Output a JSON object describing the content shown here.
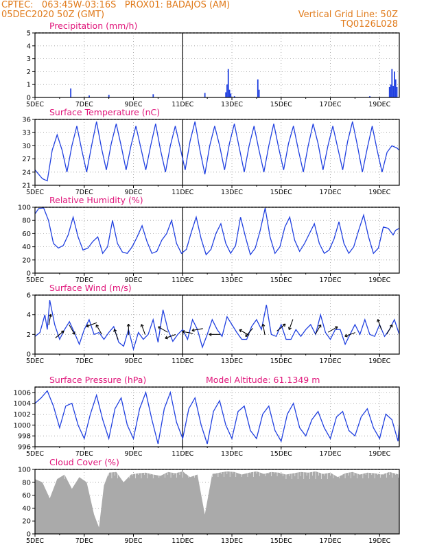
{
  "header": {
    "line1_left": "CPTEC:   063:45W-03:16S   PROX01: BADAJOS (AM)",
    "line2_left": "05DEC2020 50Z (GMT)",
    "line2_right": "Vertical Grid Line: 50Z",
    "line3_right": "TQ0126L028"
  },
  "colors": {
    "line": "#2040e0",
    "title": "#e0157a",
    "header": "#e07a1a",
    "cloud": "#aaaaaa",
    "wind_arrow": "#000000"
  },
  "x_ticks": [
    "5DEC",
    "7DEC",
    "9DEC",
    "11DEC",
    "13DEC",
    "15DEC",
    "17DEC",
    "19DEC"
  ],
  "x_tick_days": [
    0,
    2,
    4,
    6,
    8,
    10,
    12,
    14
  ],
  "vertical_grid_day": 6,
  "chart_data": [
    {
      "type": "bar",
      "title": "Precipitation (mm/h)",
      "ylim": [
        0,
        5
      ],
      "yticks": [
        "0",
        "1",
        "2",
        "3",
        "4",
        "5"
      ],
      "xlim": [
        0,
        14.8
      ],
      "x": [
        1.45,
        2.2,
        3.0,
        4.8,
        6.9,
        7.75,
        7.8,
        7.85,
        7.9,
        7.95,
        8.1,
        9.05,
        9.1,
        13.6,
        14.4,
        14.45,
        14.5,
        14.55,
        14.6,
        14.65,
        14.7
      ],
      "values": [
        0.7,
        0.15,
        0.2,
        0.25,
        0.35,
        0.4,
        1.0,
        2.2,
        0.6,
        0.3,
        0.1,
        1.4,
        0.6,
        0.1,
        0.8,
        1.0,
        2.2,
        0.9,
        2.0,
        1.4,
        0.8
      ],
      "grid": true
    },
    {
      "type": "line",
      "title": "Surface Temperature (nC)",
      "ylim": [
        21,
        36
      ],
      "yticks": [
        "21",
        "24",
        "27",
        "30",
        "33",
        "36"
      ],
      "xlim": [
        0,
        14.8
      ],
      "x": [
        0,
        0.3,
        0.5,
        0.7,
        0.9,
        1.1,
        1.3,
        1.5,
        1.7,
        1.9,
        2.1,
        2.3,
        2.5,
        2.7,
        2.9,
        3.1,
        3.3,
        3.5,
        3.7,
        3.9,
        4.1,
        4.3,
        4.5,
        4.7,
        4.9,
        5.1,
        5.3,
        5.5,
        5.7,
        5.9,
        6.1,
        6.3,
        6.5,
        6.7,
        6.9,
        7.1,
        7.3,
        7.5,
        7.7,
        7.9,
        8.1,
        8.3,
        8.5,
        8.7,
        8.9,
        9.1,
        9.3,
        9.5,
        9.7,
        9.9,
        10.1,
        10.3,
        10.5,
        10.7,
        10.9,
        11.1,
        11.3,
        11.5,
        11.7,
        11.9,
        12.1,
        12.3,
        12.5,
        12.7,
        12.9,
        13.1,
        13.3,
        13.5,
        13.7,
        13.9,
        14.1,
        14.3,
        14.5,
        14.7,
        14.8
      ],
      "values": [
        24.5,
        22.5,
        22,
        29,
        32.5,
        29,
        24,
        30,
        34.5,
        29,
        24,
        30,
        35.5,
        29.5,
        24.5,
        30.5,
        35,
        30,
        24.5,
        30,
        34.5,
        29.5,
        24.5,
        30,
        35,
        29,
        24,
        30,
        34.5,
        29.5,
        24.5,
        31,
        35.5,
        29,
        23.5,
        30,
        34.5,
        30,
        24.5,
        30.5,
        35,
        29.5,
        24,
        30,
        34.5,
        29,
        24,
        30,
        35,
        29.5,
        24.5,
        30.5,
        34.5,
        29,
        24,
        30,
        35,
        30.5,
        24.5,
        30,
        34.5,
        29.5,
        24.5,
        31,
        35.5,
        30,
        24,
        29.5,
        34.5,
        29,
        24,
        28.5,
        30,
        29.5,
        29
      ],
      "grid": true
    },
    {
      "type": "line",
      "title": "Relative Humidity (%)",
      "ylim": [
        0,
        100
      ],
      "yticks": [
        "0",
        "20",
        "40",
        "60",
        "80",
        "100"
      ],
      "xlim": [
        0,
        14.8
      ],
      "x": [
        0,
        0.15,
        0.35,
        0.55,
        0.75,
        0.95,
        1.15,
        1.35,
        1.55,
        1.75,
        1.95,
        2.15,
        2.35,
        2.55,
        2.75,
        2.95,
        3.15,
        3.35,
        3.55,
        3.75,
        3.95,
        4.15,
        4.35,
        4.55,
        4.75,
        4.95,
        5.15,
        5.35,
        5.55,
        5.75,
        5.95,
        6.15,
        6.35,
        6.55,
        6.75,
        6.95,
        7.15,
        7.35,
        7.55,
        7.75,
        7.95,
        8.15,
        8.35,
        8.55,
        8.75,
        8.95,
        9.15,
        9.35,
        9.55,
        9.75,
        9.95,
        10.15,
        10.35,
        10.55,
        10.75,
        10.95,
        11.15,
        11.35,
        11.55,
        11.75,
        11.95,
        12.15,
        12.35,
        12.55,
        12.75,
        12.95,
        13.15,
        13.35,
        13.55,
        13.75,
        13.95,
        14.15,
        14.35,
        14.55,
        14.65,
        14.8
      ],
      "values": [
        90,
        98,
        99,
        80,
        45,
        38,
        42,
        58,
        85,
        55,
        35,
        38,
        48,
        55,
        30,
        40,
        80,
        45,
        32,
        30,
        40,
        55,
        72,
        48,
        30,
        33,
        50,
        60,
        80,
        45,
        30,
        36,
        62,
        85,
        52,
        28,
        36,
        60,
        75,
        45,
        30,
        42,
        85,
        55,
        28,
        38,
        65,
        99,
        55,
        30,
        40,
        70,
        85,
        50,
        33,
        45,
        60,
        75,
        45,
        30,
        35,
        52,
        78,
        45,
        30,
        40,
        65,
        88,
        55,
        30,
        38,
        70,
        68,
        58,
        65,
        68
      ],
      "grid": true
    },
    {
      "type": "line",
      "title": "Surface Wind (m/s)",
      "ylim": [
        0,
        6
      ],
      "yticks": [
        "0",
        "2",
        "4",
        "6"
      ],
      "xlim": [
        0,
        14.8
      ],
      "x": [
        0,
        0.2,
        0.4,
        0.5,
        0.6,
        0.8,
        1.0,
        1.2,
        1.4,
        1.6,
        1.8,
        2.0,
        2.2,
        2.4,
        2.6,
        2.8,
        3.0,
        3.2,
        3.4,
        3.6,
        3.8,
        4.0,
        4.2,
        4.4,
        4.6,
        4.8,
        5.0,
        5.2,
        5.4,
        5.6,
        5.8,
        6.0,
        6.2,
        6.4,
        6.6,
        6.8,
        7.0,
        7.2,
        7.4,
        7.6,
        7.8,
        8.0,
        8.2,
        8.4,
        8.6,
        8.8,
        9.0,
        9.2,
        9.4,
        9.6,
        9.8,
        10.0,
        10.2,
        10.4,
        10.6,
        10.8,
        11.0,
        11.2,
        11.4,
        11.6,
        11.8,
        12.0,
        12.2,
        12.4,
        12.6,
        12.8,
        13.0,
        13.2,
        13.4,
        13.6,
        13.8,
        14.0,
        14.2,
        14.4,
        14.6,
        14.8
      ],
      "values": [
        1.8,
        2.2,
        4.0,
        2.5,
        5.5,
        3.0,
        1.5,
        2.5,
        3.3,
        2.2,
        1.0,
        2.5,
        3.5,
        2.0,
        2.2,
        1.5,
        2.2,
        2.8,
        1.2,
        0.8,
        2.5,
        0.5,
        2.2,
        1.5,
        2.0,
        3.5,
        1.2,
        4.5,
        2.5,
        1.3,
        2.0,
        2.5,
        1.5,
        3.5,
        2.5,
        0.7,
        2.0,
        3.5,
        2.5,
        1.8,
        3.8,
        3.0,
        2.2,
        1.5,
        1.5,
        2.8,
        3.5,
        2.5,
        5.0,
        2.0,
        1.8,
        3.0,
        1.5,
        1.5,
        2.5,
        1.8,
        2.5,
        3.0,
        2.0,
        4.0,
        2.2,
        1.5,
        2.5,
        2.5,
        1.0,
        2.0,
        3.0,
        2.0,
        3.5,
        2.0,
        1.8,
        3.0,
        1.8,
        2.5,
        3.5,
        2.0
      ],
      "arrows_day": [
        0.6,
        1.0,
        1.5,
        2.3,
        2.6,
        3.3,
        3.8,
        4.4,
        5.2,
        5.5,
        6.2,
        6.6,
        7.3,
        8.5,
        8.7,
        9.3,
        10.0,
        10.4,
        11.5,
        12.1,
        12.8,
        14.0,
        14.4
      ],
      "arrows_speed": [
        3.5,
        2.0,
        2.5,
        3.0,
        2.5,
        2.0,
        2.5,
        2.5,
        2.5,
        1.8,
        2.2,
        2.5,
        2.0,
        2.2,
        2.2,
        2.5,
        2.7,
        3.0,
        2.5,
        2.5,
        2.0,
        3.0,
        2.5
      ],
      "arrows_angle_deg": [
        80,
        40,
        -60,
        200,
        120,
        110,
        90,
        110,
        150,
        200,
        170,
        190,
        180,
        150,
        230,
        100,
        40,
        250,
        60,
        30,
        200,
        110,
        60
      ],
      "grid": true
    },
    {
      "type": "line",
      "title": "Surface Pressure (hPa)",
      "annotation": "Model Altitude: 61.1349 m",
      "ylim": [
        996,
        1007
      ],
      "yticks": [
        "996",
        "998",
        "1000",
        "1002",
        "1004",
        "1006"
      ],
      "xlim": [
        0,
        14.8
      ],
      "x": [
        0,
        0.25,
        0.5,
        0.75,
        1.0,
        1.25,
        1.5,
        1.75,
        2.0,
        2.25,
        2.5,
        2.75,
        3.0,
        3.25,
        3.5,
        3.75,
        4.0,
        4.25,
        4.5,
        4.75,
        5.0,
        5.25,
        5.5,
        5.75,
        6.0,
        6.25,
        6.5,
        6.75,
        7.0,
        7.25,
        7.5,
        7.75,
        8.0,
        8.25,
        8.5,
        8.75,
        9.0,
        9.25,
        9.5,
        9.75,
        10.0,
        10.25,
        10.5,
        10.75,
        11.0,
        11.25,
        11.5,
        11.75,
        12.0,
        12.25,
        12.5,
        12.75,
        13.0,
        13.25,
        13.5,
        13.75,
        14.0,
        14.25,
        14.5,
        14.75,
        14.8
      ],
      "values": [
        1004,
        1005,
        1006.3,
        1003.5,
        999.5,
        1003.5,
        1004,
        1000,
        997.5,
        1002,
        1005.5,
        1001,
        997.5,
        1003,
        1005,
        1000,
        997.5,
        1003,
        1006,
        1001,
        996.5,
        1003,
        1006,
        1000.5,
        997.5,
        1003,
        1005,
        1000,
        996.5,
        1002.5,
        1004.5,
        1000,
        997.5,
        1002.5,
        1003.5,
        999,
        997.5,
        1002,
        1003.5,
        999,
        997,
        1002,
        1004,
        999.5,
        998,
        1001,
        1002.5,
        999.5,
        997.5,
        1001.5,
        1002.5,
        999,
        998,
        1001.5,
        1003,
        999.5,
        997.5,
        1002,
        1001,
        997,
        1000
      ],
      "grid": true
    },
    {
      "type": "area",
      "title": "Cloud Cover (%)",
      "ylim": [
        0,
        100
      ],
      "yticks": [
        "0",
        "20",
        "40",
        "60",
        "80",
        "100"
      ],
      "xlim": [
        0,
        14.8
      ],
      "x": [
        0,
        0.3,
        0.6,
        0.9,
        1.2,
        1.5,
        1.8,
        2.1,
        2.4,
        2.6,
        2.8,
        3.0,
        3.3,
        3.6,
        3.9,
        4.2,
        4.5,
        4.8,
        5.1,
        5.4,
        5.7,
        6.0,
        6.3,
        6.6,
        6.9,
        7.2,
        7.5,
        7.8,
        8.1,
        8.4,
        8.7,
        9.0,
        9.3,
        9.6,
        9.9,
        10.2,
        10.5,
        10.8,
        11.1,
        11.4,
        11.7,
        12.0,
        12.3,
        12.6,
        12.9,
        13.2,
        13.5,
        13.8,
        14.1,
        14.4,
        14.7,
        14.8
      ],
      "values": [
        85,
        80,
        55,
        85,
        92,
        70,
        88,
        80,
        30,
        10,
        75,
        95,
        96,
        80,
        92,
        94,
        95,
        92,
        90,
        96,
        94,
        97,
        88,
        92,
        30,
        93,
        95,
        97,
        96,
        92,
        95,
        97,
        93,
        96,
        95,
        92,
        94,
        96,
        95,
        97,
        93,
        95,
        88,
        94,
        96,
        92,
        95,
        94,
        92,
        96,
        93,
        92
      ],
      "grid": true
    }
  ]
}
